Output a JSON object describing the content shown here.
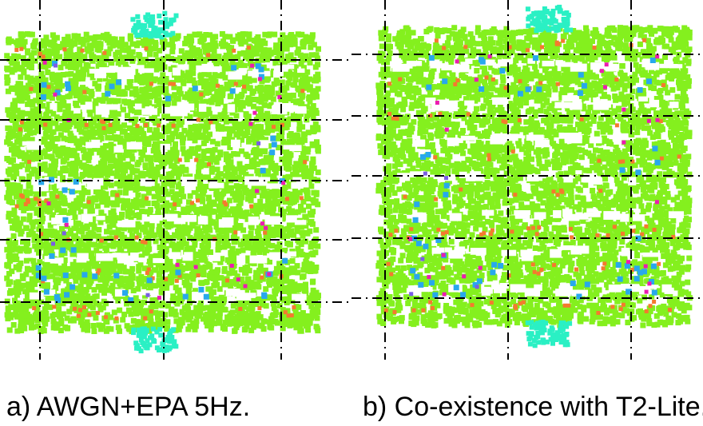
{
  "colors": {
    "main_cloud": "#84f01e",
    "corner_marker": "#2af0c4",
    "orange": "#f47a2e",
    "blue": "#28a8ec",
    "magenta": "#ec1cb0",
    "violet": "#7a5ee4",
    "axis": "#000000"
  },
  "chart_data": [
    {
      "type": "scatter",
      "panel_label": "a) AWGN+EPA 5Hz.",
      "grid": true,
      "xlim": [
        -1,
        1
      ],
      "ylim": [
        -1,
        1
      ],
      "constellation_levels": [
        -0.875,
        -0.625,
        -0.375,
        -0.125,
        0.125,
        0.375,
        0.625,
        0.875
      ],
      "series": [
        {
          "color_key": "main_cloud",
          "description": "dense constellation cloud",
          "density": 0.95
        },
        {
          "color_key": "orange",
          "density": 0.18
        },
        {
          "color_key": "blue",
          "density": 0.09
        },
        {
          "color_key": "magenta",
          "density": 0.035
        },
        {
          "color_key": "violet",
          "density": 0.008
        },
        {
          "color_key": "corner_marker",
          "positions": [
            [
              -0.05,
              1.05
            ],
            [
              -0.05,
              -1.05
            ]
          ]
        }
      ]
    },
    {
      "type": "scatter",
      "panel_label": "b) Co-existence with T2-Lite.",
      "grid": true,
      "xlim": [
        -1,
        1
      ],
      "ylim": [
        -1,
        1
      ],
      "constellation_levels": [
        -0.875,
        -0.625,
        -0.375,
        -0.125,
        0.125,
        0.375,
        0.625,
        0.875
      ],
      "series": [
        {
          "color_key": "main_cloud",
          "density": 0.93
        },
        {
          "color_key": "orange",
          "density": 0.2
        },
        {
          "color_key": "blue",
          "density": 0.1
        },
        {
          "color_key": "magenta",
          "density": 0.04
        },
        {
          "color_key": "violet",
          "density": 0.008
        },
        {
          "color_key": "corner_marker",
          "positions": [
            [
              0.1,
              1.05
            ],
            [
              0.1,
              -1.05
            ]
          ]
        }
      ]
    }
  ]
}
